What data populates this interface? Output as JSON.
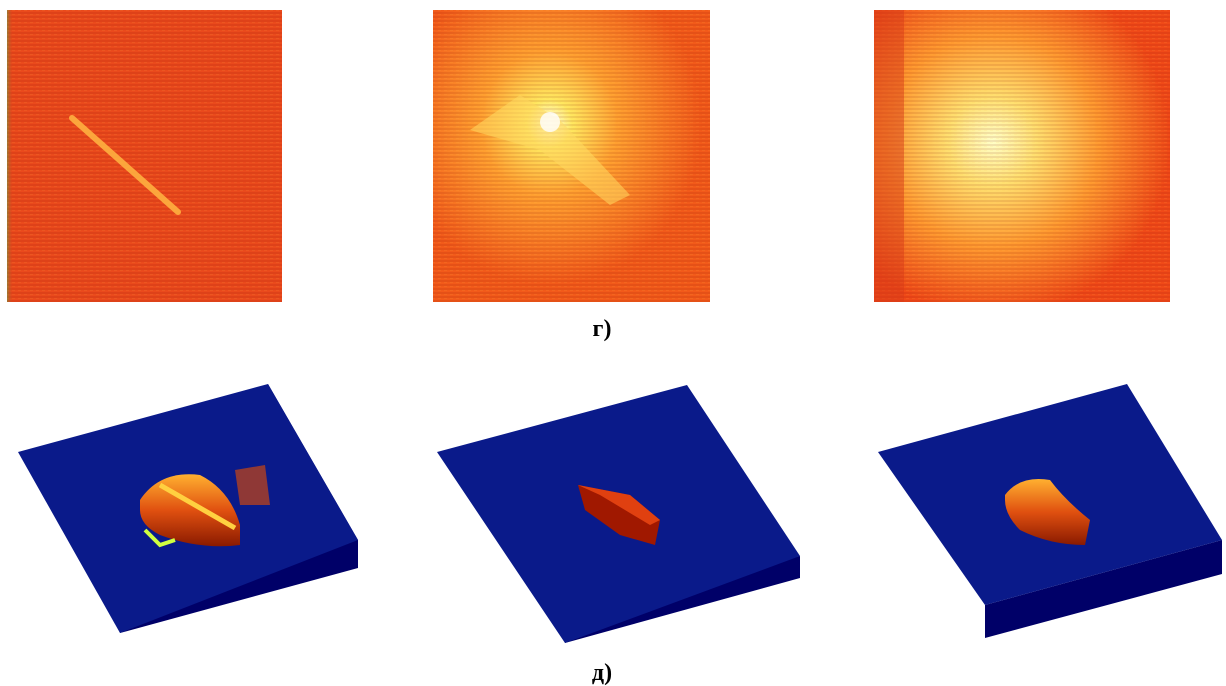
{
  "figure": {
    "captions": [
      "г)",
      "д)"
    ]
  }
}
